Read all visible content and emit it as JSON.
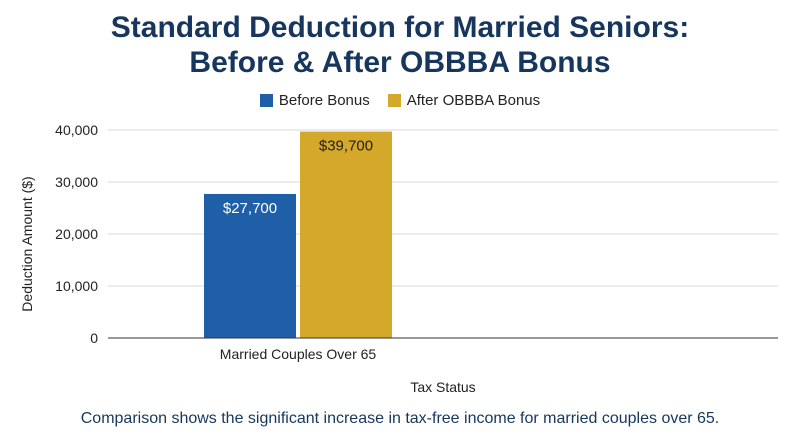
{
  "chart_data": {
    "type": "bar",
    "title_line1": "Standard Deduction for Married Seniors:",
    "title_line2": "Before & After OBBBA Bonus",
    "categories": [
      "Married Couples Over 65"
    ],
    "series": [
      {
        "name": "Before Bonus",
        "values": [
          27700
        ],
        "color": "#1f5fa8",
        "labels": [
          "$27,700"
        ],
        "label_color": "#ffffff"
      },
      {
        "name": "After OBBBA Bonus",
        "values": [
          39700
        ],
        "color": "#d4a82a",
        "labels": [
          "$39,700"
        ],
        "label_color": "#222222"
      }
    ],
    "xlabel": "Tax Status",
    "ylabel": "Deduction Amount ($)",
    "ylim": [
      0,
      40000
    ],
    "yticks": [
      0,
      10000,
      20000,
      30000,
      40000
    ],
    "ytick_labels": [
      "0",
      "10,000",
      "20,000",
      "30,000",
      "40,000"
    ],
    "grid": true,
    "legend_position": "top-center"
  },
  "caption": "Comparison shows the significant increase in tax-free income for married couples over 65."
}
